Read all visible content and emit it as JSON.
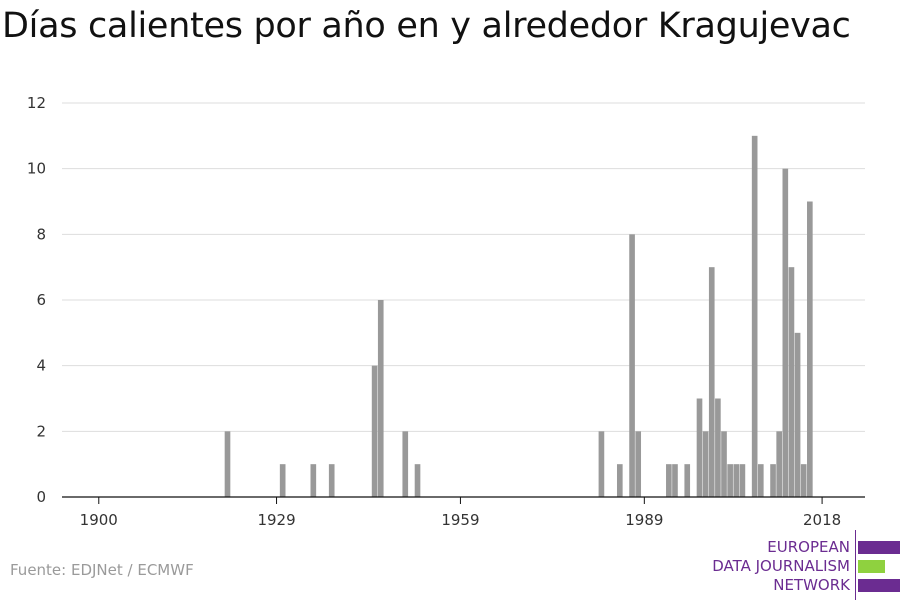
{
  "title": "Días calientes por año en y alrededor Kragujevac",
  "source": "Fuente: EDJNet / ECMWF",
  "logo": {
    "lines": [
      "EUROPEAN",
      "DATA JOURNALISM",
      "NETWORK"
    ],
    "colors": {
      "purple": "#6b2c91",
      "green": "#8fd13f"
    }
  },
  "chart_data": {
    "type": "bar",
    "title": "Días calientes por año en y alrededor Kragujevac",
    "xlabel": "",
    "ylabel": "",
    "xlim": [
      1894,
      2025
    ],
    "ylim": [
      0,
      12
    ],
    "x_ticks": [
      1900,
      1929,
      1959,
      1989,
      2018
    ],
    "y_ticks": [
      0,
      2,
      4,
      6,
      8,
      10,
      12
    ],
    "grid": true,
    "bar_color": "#999999",
    "x": [
      1921,
      1930,
      1935,
      1938,
      1945,
      1946,
      1950,
      1952,
      1982,
      1985,
      1987,
      1988,
      1993,
      1994,
      1996,
      1998,
      1999,
      2000,
      2001,
      2002,
      2003,
      2004,
      2005,
      2007,
      2008,
      2010,
      2011,
      2012,
      2013,
      2014,
      2015,
      2016,
      2017
    ],
    "values": [
      2,
      1,
      1,
      1,
      4,
      6,
      2,
      1,
      2,
      1,
      8,
      2,
      1,
      1,
      1,
      3,
      2,
      7,
      3,
      2,
      1,
      1,
      1,
      11,
      1,
      1,
      2,
      10,
      7,
      5,
      1,
      9,
      0
    ]
  }
}
